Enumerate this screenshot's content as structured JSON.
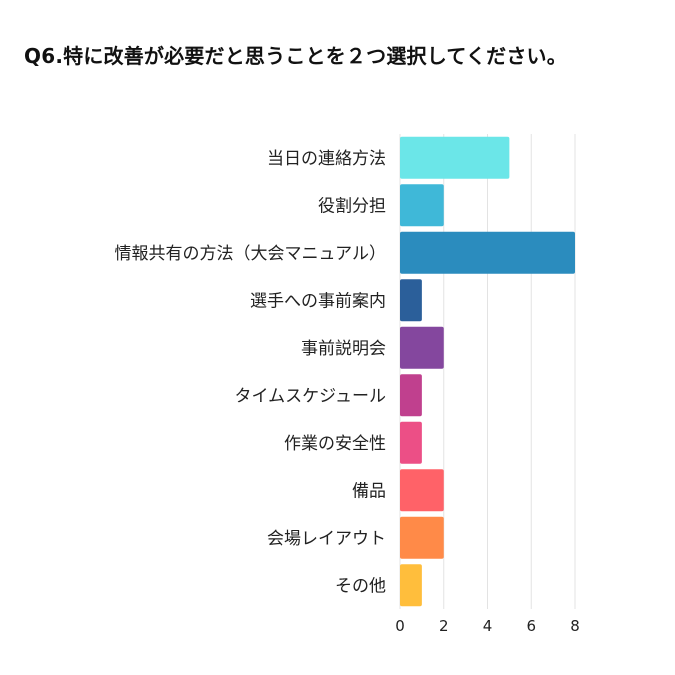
{
  "chart_data": {
    "type": "bar",
    "orientation": "horizontal",
    "title": "Q6.特に改善が必要だと思うことを２つ選択してください。",
    "categories": [
      "当日の連絡方法",
      "役割分担",
      "情報共有の方法（大会マニュアル）",
      "選手への事前案内",
      "事前説明会",
      "タイムスケジュール",
      "作業の安全性",
      "備品",
      "会場レイアウト",
      "その他"
    ],
    "values": [
      5,
      2,
      8,
      1,
      2,
      1,
      1,
      2,
      2,
      1
    ],
    "colors": [
      "#6be6e8",
      "#3fb8d8",
      "#2b8cbe",
      "#2b5f9a",
      "#84479e",
      "#c0408e",
      "#ec4f86",
      "#ff6268",
      "#ff8a48",
      "#ffbe3c"
    ],
    "xlim": [
      0,
      8
    ],
    "xticks": [
      "0",
      "2",
      "4",
      "6",
      "8"
    ],
    "xlabel": "",
    "ylabel": "",
    "grid": true,
    "legend": "none"
  }
}
